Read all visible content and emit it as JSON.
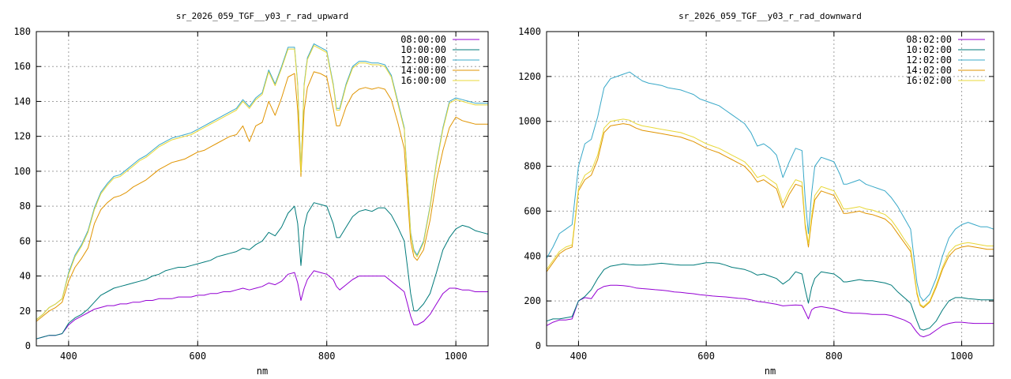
{
  "colors": {
    "s1": "#9400d3",
    "s2": "#007a7a",
    "s3": "#38a8c8",
    "s4": "#e09400",
    "s5": "#e8d838"
  },
  "chart_data": [
    {
      "type": "line",
      "title": "sr_2026_059_TGF__y03_r_rad_upward",
      "xlabel": "nm",
      "ylabel": "",
      "xlim": [
        350,
        1050
      ],
      "ylim": [
        0,
        180
      ],
      "xticks": [
        400,
        600,
        800,
        1000
      ],
      "yticks": [
        0,
        20,
        40,
        60,
        80,
        100,
        120,
        140,
        160,
        180
      ],
      "grid": true,
      "legend_position": "top-right",
      "x": [
        350,
        360,
        370,
        380,
        390,
        400,
        410,
        420,
        430,
        440,
        450,
        460,
        470,
        480,
        490,
        500,
        510,
        520,
        530,
        540,
        550,
        560,
        570,
        580,
        590,
        600,
        610,
        620,
        630,
        640,
        650,
        660,
        670,
        680,
        690,
        700,
        710,
        720,
        730,
        740,
        750,
        755,
        760,
        765,
        770,
        780,
        790,
        800,
        810,
        815,
        820,
        830,
        840,
        850,
        860,
        870,
        880,
        890,
        900,
        910,
        920,
        925,
        930,
        935,
        940,
        950,
        960,
        970,
        980,
        990,
        1000,
        1010,
        1020,
        1030,
        1040,
        1050
      ],
      "series": [
        {
          "name": "08:00:00",
          "color_key": "s1",
          "values": [
            4,
            5,
            6,
            6,
            7,
            12,
            15,
            17,
            19,
            21,
            22,
            23,
            23,
            24,
            24,
            25,
            25,
            26,
            26,
            27,
            27,
            27,
            28,
            28,
            28,
            29,
            29,
            30,
            30,
            31,
            31,
            32,
            33,
            32,
            33,
            34,
            36,
            35,
            37,
            41,
            42,
            36,
            26,
            33,
            38,
            43,
            42,
            41,
            38,
            34,
            32,
            35,
            38,
            40,
            40,
            40,
            40,
            40,
            37,
            34,
            31,
            24,
            17,
            12,
            12,
            14,
            18,
            24,
            30,
            33,
            33,
            32,
            32,
            31,
            31,
            31
          ]
        },
        {
          "name": "10:00:00",
          "color_key": "s2",
          "values": [
            4,
            5,
            6,
            6,
            7,
            13,
            16,
            18,
            21,
            25,
            29,
            31,
            33,
            34,
            35,
            36,
            37,
            38,
            40,
            41,
            43,
            44,
            45,
            45,
            46,
            47,
            48,
            49,
            51,
            52,
            53,
            54,
            56,
            55,
            58,
            60,
            65,
            63,
            68,
            76,
            80,
            70,
            46,
            68,
            76,
            82,
            81,
            80,
            70,
            62,
            62,
            68,
            74,
            77,
            78,
            77,
            79,
            79,
            75,
            68,
            60,
            45,
            30,
            20,
            20,
            24,
            30,
            42,
            55,
            62,
            67,
            69,
            68,
            66,
            65,
            64
          ]
        },
        {
          "name": "12:00:00",
          "color_key": "s3",
          "values": [
            15,
            18,
            22,
            24,
            27,
            42,
            52,
            58,
            66,
            79,
            88,
            93,
            97,
            98,
            101,
            104,
            107,
            109,
            112,
            115,
            117,
            119,
            120,
            121,
            122,
            124,
            126,
            128,
            130,
            132,
            134,
            136,
            141,
            137,
            142,
            145,
            158,
            150,
            160,
            171,
            171,
            150,
            100,
            150,
            165,
            173,
            171,
            169,
            150,
            136,
            136,
            150,
            160,
            163,
            163,
            162,
            162,
            161,
            155,
            140,
            125,
            95,
            65,
            55,
            52,
            60,
            80,
            105,
            125,
            140,
            142,
            141,
            140,
            139,
            139,
            139
          ]
        },
        {
          "name": "14:00:00",
          "color_key": "s4",
          "values": [
            14,
            17,
            20,
            22,
            25,
            37,
            45,
            50,
            56,
            70,
            78,
            82,
            85,
            86,
            88,
            91,
            93,
            95,
            98,
            101,
            103,
            105,
            106,
            107,
            109,
            111,
            112,
            114,
            116,
            118,
            120,
            121,
            126,
            117,
            126,
            128,
            140,
            132,
            142,
            154,
            156,
            135,
            97,
            135,
            148,
            157,
            156,
            154,
            136,
            126,
            126,
            137,
            144,
            147,
            148,
            147,
            148,
            147,
            141,
            128,
            113,
            86,
            60,
            51,
            49,
            55,
            72,
            95,
            112,
            125,
            131,
            129,
            128,
            127,
            127,
            127
          ]
        },
        {
          "name": "16:00:00",
          "color_key": "s5",
          "values": [
            15,
            18,
            22,
            24,
            27,
            41,
            51,
            57,
            65,
            78,
            87,
            92,
            96,
            97,
            100,
            103,
            106,
            108,
            111,
            114,
            116,
            118,
            119,
            120,
            121,
            123,
            125,
            127,
            129,
            131,
            133,
            135,
            140,
            136,
            141,
            144,
            157,
            149,
            159,
            170,
            170,
            149,
            99,
            149,
            164,
            172,
            170,
            168,
            149,
            135,
            135,
            149,
            159,
            162,
            162,
            161,
            161,
            160,
            154,
            139,
            124,
            94,
            64,
            54,
            51,
            59,
            79,
            104,
            124,
            139,
            141,
            140,
            139,
            138,
            138,
            138
          ]
        }
      ]
    },
    {
      "type": "line",
      "title": "sr_2026_059_TGF__y03_r_rad_downward",
      "xlabel": "nm",
      "ylabel": "",
      "xlim": [
        350,
        1050
      ],
      "ylim": [
        0,
        1400
      ],
      "xticks": [
        400,
        600,
        800,
        1000
      ],
      "yticks": [
        0,
        200,
        400,
        600,
        800,
        1000,
        1200,
        1400
      ],
      "grid": true,
      "legend_position": "top-right",
      "x": [
        350,
        360,
        370,
        380,
        390,
        400,
        410,
        420,
        430,
        440,
        450,
        460,
        470,
        480,
        490,
        500,
        510,
        520,
        530,
        540,
        550,
        560,
        570,
        580,
        590,
        600,
        610,
        620,
        630,
        640,
        650,
        660,
        670,
        680,
        690,
        700,
        710,
        720,
        730,
        740,
        750,
        755,
        760,
        765,
        770,
        780,
        790,
        800,
        810,
        815,
        820,
        830,
        840,
        850,
        860,
        870,
        880,
        890,
        900,
        910,
        920,
        925,
        930,
        935,
        940,
        950,
        960,
        970,
        980,
        990,
        1000,
        1010,
        1020,
        1030,
        1040,
        1050
      ],
      "series": [
        {
          "name": "08:02:00",
          "color_key": "s1",
          "values": [
            90,
            105,
            115,
            115,
            120,
            200,
            215,
            210,
            250,
            265,
            270,
            270,
            268,
            265,
            258,
            255,
            253,
            250,
            248,
            245,
            240,
            238,
            235,
            232,
            228,
            225,
            222,
            220,
            218,
            215,
            212,
            210,
            205,
            198,
            195,
            190,
            185,
            178,
            180,
            182,
            180,
            150,
            120,
            160,
            170,
            175,
            170,
            165,
            155,
            150,
            148,
            145,
            145,
            143,
            140,
            140,
            140,
            135,
            125,
            115,
            100,
            80,
            60,
            45,
            40,
            50,
            70,
            90,
            100,
            105,
            105,
            102,
            100,
            100,
            100,
            100
          ]
        },
        {
          "name": "10:02:00",
          "color_key": "s2",
          "values": [
            110,
            120,
            120,
            125,
            130,
            200,
            220,
            250,
            300,
            340,
            355,
            360,
            365,
            362,
            360,
            360,
            362,
            365,
            368,
            365,
            362,
            360,
            360,
            360,
            365,
            370,
            370,
            368,
            360,
            350,
            345,
            340,
            330,
            315,
            320,
            310,
            300,
            275,
            295,
            330,
            320,
            250,
            190,
            260,
            300,
            330,
            325,
            320,
            300,
            285,
            285,
            290,
            295,
            290,
            290,
            285,
            280,
            270,
            240,
            215,
            190,
            150,
            110,
            75,
            70,
            80,
            110,
            160,
            200,
            215,
            215,
            210,
            208,
            205,
            205,
            205
          ]
        },
        {
          "name": "12:02:00",
          "color_key": "s3",
          "values": [
            390,
            440,
            500,
            520,
            540,
            800,
            900,
            920,
            1020,
            1150,
            1190,
            1200,
            1210,
            1220,
            1200,
            1180,
            1170,
            1165,
            1160,
            1150,
            1145,
            1140,
            1130,
            1120,
            1100,
            1090,
            1080,
            1070,
            1050,
            1030,
            1010,
            990,
            950,
            890,
            900,
            880,
            850,
            750,
            820,
            880,
            870,
            650,
            500,
            680,
            800,
            840,
            830,
            820,
            760,
            720,
            720,
            730,
            740,
            720,
            710,
            700,
            690,
            660,
            620,
            570,
            520,
            400,
            280,
            220,
            200,
            230,
            300,
            400,
            480,
            520,
            540,
            550,
            540,
            530,
            530,
            520
          ]
        },
        {
          "name": "14:02:00",
          "color_key": "s4",
          "values": [
            330,
            370,
            410,
            430,
            440,
            690,
            740,
            760,
            830,
            950,
            980,
            985,
            990,
            985,
            970,
            960,
            955,
            950,
            945,
            940,
            935,
            930,
            920,
            910,
            895,
            880,
            870,
            860,
            845,
            830,
            815,
            800,
            770,
            730,
            740,
            720,
            700,
            615,
            675,
            720,
            710,
            530,
            440,
            560,
            650,
            690,
            680,
            670,
            620,
            590,
            590,
            595,
            600,
            590,
            585,
            575,
            565,
            540,
            500,
            460,
            420,
            330,
            230,
            180,
            170,
            195,
            260,
            340,
            400,
            430,
            440,
            445,
            440,
            435,
            430,
            430
          ]
        },
        {
          "name": "16:02:00",
          "color_key": "s5",
          "values": [
            340,
            380,
            420,
            440,
            450,
            700,
            760,
            780,
            850,
            970,
            1000,
            1005,
            1010,
            1005,
            990,
            980,
            975,
            970,
            965,
            960,
            955,
            950,
            940,
            930,
            915,
            900,
            890,
            880,
            865,
            850,
            835,
            820,
            790,
            750,
            760,
            740,
            720,
            635,
            695,
            740,
            730,
            545,
            455,
            580,
            670,
            710,
            700,
            690,
            640,
            610,
            610,
            615,
            620,
            610,
            605,
            595,
            585,
            560,
            520,
            475,
            435,
            340,
            240,
            185,
            175,
            200,
            270,
            350,
            415,
            445,
            455,
            460,
            455,
            450,
            445,
            445
          ]
        }
      ]
    }
  ]
}
